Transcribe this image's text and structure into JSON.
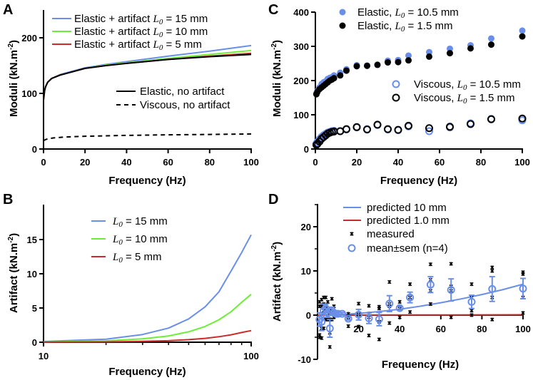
{
  "colors": {
    "blue": "#6a8fe8",
    "green": "#6cee38",
    "red": "#cc2b2b",
    "black": "#000000"
  },
  "chart_data": [
    {
      "panel": "A",
      "type": "line",
      "xlabel": "Frequency (Hz)",
      "ylabel": {
        "pre": "Moduli (kN.m",
        "sup": "-2",
        "post": ")"
      },
      "xlim": [
        0,
        100
      ],
      "ylim": [
        0,
        250
      ],
      "xscale": "linear",
      "xticks": [
        "0",
        "20",
        "40",
        "60",
        "80",
        "100"
      ],
      "yticks": [
        "0",
        "100",
        "200"
      ],
      "legend_position": "top-right",
      "series": [
        {
          "name": {
            "pre": "Elastic + artifact ",
            "sym": "L",
            "sub": "0",
            "post": " = 15 mm"
          },
          "color": "#6a8fe8",
          "style": "line",
          "x": [
            0,
            0.5,
            1,
            2,
            4,
            8,
            15,
            20,
            30,
            40,
            60,
            80,
            100
          ],
          "y": [
            88,
            105,
            112,
            120,
            127,
            134,
            141,
            146,
            152,
            157,
            167,
            176,
            186
          ]
        },
        {
          "name": {
            "pre": "Elastic + artifact ",
            "sym": "L",
            "sub": "0",
            "post": " = 10 mm"
          },
          "color": "#6cee38",
          "style": "line",
          "x": [
            0,
            0.5,
            1,
            2,
            4,
            8,
            15,
            20,
            30,
            40,
            60,
            80,
            100
          ],
          "y": [
            88,
            105,
            112,
            120,
            127,
            133,
            140,
            145,
            151,
            155,
            163,
            170,
            177
          ]
        },
        {
          "name": {
            "pre": "Elastic + artifact ",
            "sym": "L",
            "sub": "0",
            "post": " = 5 mm"
          },
          "color": "#cc2b2b",
          "style": "line",
          "x": [
            0,
            0.5,
            1,
            2,
            4,
            8,
            15,
            20,
            30,
            40,
            60,
            80,
            100
          ],
          "y": [
            88,
            105,
            112,
            120,
            127,
            133,
            140,
            145,
            150,
            154,
            161,
            167,
            172
          ]
        },
        {
          "name": {
            "pre": "Elastic, no artifact",
            "sym": "",
            "sub": "",
            "post": ""
          },
          "color": "#000000",
          "style": "line",
          "x": [
            0,
            0.5,
            1,
            2,
            4,
            8,
            15,
            20,
            30,
            40,
            60,
            80,
            100
          ],
          "y": [
            88,
            105,
            112,
            120,
            127,
            133,
            140,
            145,
            150,
            154,
            161,
            166,
            170
          ]
        },
        {
          "name": {
            "pre": "Viscous, no artifact",
            "sym": "",
            "sub": "",
            "post": ""
          },
          "color": "#000000",
          "style": "dashed",
          "x": [
            0,
            1,
            3,
            5,
            10,
            20,
            40,
            60,
            80,
            100
          ],
          "y": [
            15,
            17,
            19,
            20,
            21.5,
            23,
            24.5,
            25.5,
            26.2,
            27
          ]
        }
      ]
    },
    {
      "panel": "B",
      "type": "line",
      "xlabel": "Frequency (Hz)",
      "ylabel": {
        "pre": "Artifact (kN.m",
        "sup": "-2",
        "post": ")"
      },
      "xlim": [
        10,
        100
      ],
      "ylim": [
        0,
        20
      ],
      "xscale": "log",
      "xticks": [
        "10",
        "100"
      ],
      "yticks": [
        "0",
        "5",
        "10",
        "15"
      ],
      "legend_position": "top-center",
      "series": [
        {
          "name": {
            "pre": "",
            "sym": "L",
            "sub": "0",
            "post": " = 15 mm"
          },
          "color": "#6a8fe8",
          "style": "line",
          "x": [
            10,
            20,
            30,
            40,
            50,
            60,
            70,
            80,
            90,
            100
          ],
          "y": [
            0.1,
            0.45,
            1.12,
            2.06,
            3.41,
            5.17,
            7.36,
            10.4,
            13.1,
            15.7
          ]
        },
        {
          "name": {
            "pre": "",
            "sym": "L",
            "sub": "0",
            "post": " = 10 mm"
          },
          "color": "#6cee38",
          "style": "line",
          "x": [
            10,
            20,
            30,
            40,
            50,
            60,
            70,
            80,
            90,
            100
          ],
          "y": [
            0.04,
            0.2,
            0.5,
            0.92,
            1.52,
            2.3,
            3.28,
            4.45,
            5.83,
            7.0
          ]
        },
        {
          "name": {
            "pre": "",
            "sym": "L",
            "sub": "0",
            "post": " = 5 mm"
          },
          "color": "#cc2b2b",
          "style": "line",
          "x": [
            10,
            20,
            30,
            40,
            50,
            60,
            70,
            80,
            90,
            100
          ],
          "y": [
            0.01,
            0.05,
            0.12,
            0.22,
            0.37,
            0.56,
            0.8,
            1.08,
            1.42,
            1.7
          ]
        }
      ]
    },
    {
      "panel": "C",
      "type": "scatter",
      "xlabel": "Frequency (Hz)",
      "ylabel": {
        "pre": "Moduli (kN.m",
        "sup": "-2",
        "post": ")"
      },
      "xlim": [
        0,
        100
      ],
      "ylim": [
        0,
        400
      ],
      "xscale": "linear",
      "xticks": [
        "0",
        "20",
        "40",
        "60",
        "80",
        "100"
      ],
      "yticks": [
        "0",
        "100",
        "200",
        "300",
        "400"
      ],
      "legend_position": "top-left / middle-right",
      "series": [
        {
          "name": {
            "pre": "Elastic, ",
            "sym": "L",
            "sub": "0",
            "post": " = 10.5 mm"
          },
          "color": "#6a8fe8",
          "style": "filled",
          "x": [
            0.5,
            1,
            2,
            3,
            4,
            5,
            6,
            7,
            8,
            9,
            12,
            15,
            20,
            25,
            30,
            35,
            40,
            45,
            55,
            65,
            75,
            85,
            100
          ],
          "y": [
            163,
            170,
            180,
            190,
            195,
            198,
            205,
            208,
            210,
            215,
            223,
            233,
            245,
            244,
            246,
            258,
            260,
            273,
            283,
            293,
            303,
            323,
            346
          ]
        },
        {
          "name": {
            "pre": "Elastic, ",
            "sym": "L",
            "sub": "0",
            "post": " =  1.5 mm"
          },
          "color": "#000000",
          "style": "filled",
          "x": [
            0.5,
            1,
            2,
            3,
            4,
            5,
            6,
            7,
            8,
            9,
            12,
            15,
            20,
            25,
            30,
            35,
            40,
            45,
            55,
            65,
            75,
            85,
            100
          ],
          "y": [
            160,
            167,
            175,
            180,
            185,
            190,
            195,
            200,
            203,
            207,
            215,
            229,
            242,
            243,
            246,
            253,
            254,
            259,
            270,
            280,
            294,
            305,
            329
          ]
        },
        {
          "name": {
            "pre": "Viscous, ",
            "sym": "L",
            "sub": "0",
            "post": " = 10.5 mm"
          },
          "color": "#6a8fe8",
          "style": "open",
          "x": [
            0.5,
            1,
            2,
            3,
            4,
            5,
            6,
            7,
            8,
            9,
            12,
            15,
            20,
            25,
            30,
            35,
            40,
            45,
            55,
            65,
            75,
            85,
            100
          ],
          "y": [
            15,
            20,
            28,
            35,
            40,
            44,
            48,
            50,
            52,
            53,
            52,
            57,
            63,
            58,
            70,
            57,
            55,
            66,
            52,
            63,
            75,
            88,
            84
          ]
        },
        {
          "name": {
            "pre": "Viscous, ",
            "sym": "L",
            "sub": "0",
            "post": " =  1.5 mm"
          },
          "color": "#000000",
          "style": "open",
          "x": [
            0.5,
            1,
            2,
            3,
            4,
            5,
            6,
            7,
            8,
            9,
            12,
            15,
            20,
            25,
            30,
            35,
            40,
            45,
            55,
            65,
            75,
            85,
            100
          ],
          "y": [
            12,
            15,
            22,
            30,
            35,
            40,
            45,
            48,
            50,
            51,
            52,
            58,
            64,
            57,
            71,
            58,
            56,
            68,
            61,
            65,
            73,
            87,
            89
          ]
        }
      ]
    },
    {
      "panel": "D",
      "type": "scatter",
      "xlabel": "Frequency (Hz)",
      "ylabel": {
        "pre": "Artifact (kN.m",
        "sup": "-2",
        "post": ")"
      },
      "xlim": [
        0,
        100
      ],
      "ylim": [
        -10,
        25
      ],
      "xscale": "linear",
      "xticks": [
        "20",
        "40",
        "60",
        "80",
        "100"
      ],
      "yticks": [
        "-10",
        "0",
        "10",
        "20"
      ],
      "legend_position": "top-left",
      "series": [
        {
          "name": {
            "pre": "predicted 10 mm",
            "sym": "",
            "sub": "",
            "post": ""
          },
          "color": "#6a8fe8",
          "style": "line",
          "x": [
            0,
            10,
            20,
            30,
            40,
            50,
            60,
            70,
            80,
            90,
            100
          ],
          "y": [
            0,
            0.11,
            0.38,
            0.8,
            1.34,
            2.01,
            2.8,
            3.67,
            4.66,
            5.75,
            7.0
          ]
        },
        {
          "name": {
            "pre": "predicted 1.0 mm",
            "sym": "",
            "sub": "",
            "post": ""
          },
          "color": "#cc2b2b",
          "style": "line",
          "x": [
            0,
            50,
            100
          ],
          "y": [
            0,
            0.04,
            0.08
          ]
        },
        {
          "name": {
            "pre": "measured",
            "sym": "",
            "sub": "",
            "post": ""
          },
          "color": "#000000",
          "style": "star",
          "x": [
            1,
            1,
            1,
            1,
            2,
            2,
            2,
            2,
            3,
            3,
            3,
            3,
            4,
            4,
            4,
            4,
            5,
            5,
            5,
            5,
            6,
            6,
            6,
            6,
            7,
            7,
            7,
            7,
            8,
            8,
            8,
            8,
            10,
            10,
            10,
            10,
            15,
            15,
            15,
            15,
            20,
            20,
            20,
            20,
            25,
            25,
            25,
            25,
            30,
            30,
            30,
            30,
            35,
            35,
            35,
            35,
            40,
            40,
            40,
            40,
            45,
            45,
            45,
            45,
            55,
            55,
            55,
            55,
            65,
            65,
            65,
            65,
            75,
            75,
            75,
            75,
            85,
            85,
            85,
            85,
            100,
            100,
            100,
            100
          ],
          "y": [
            -5,
            -4.5,
            2,
            3,
            -5.2,
            3.5,
            2,
            -3,
            4,
            -3,
            2.5,
            1,
            4,
            -1,
            1.5,
            2,
            3,
            -1,
            1,
            -1,
            -7.2,
            -4,
            0.5,
            -1,
            3.7,
            1,
            -1,
            0.5,
            2,
            0,
            -0.5,
            0.5,
            0.5,
            0,
            0.3,
            0.2,
            0.3,
            -2.5,
            -0.8,
            -0.5,
            2.6,
            0.2,
            -2.6,
            0.1,
            2.1,
            -4.6,
            0.3,
            -0.5,
            1.9,
            -5.5,
            1.5,
            -1.5,
            7.5,
            -1.8,
            2,
            2.5,
            3,
            -0.5,
            1.5,
            2,
            7,
            0.7,
            4,
            4,
            11.5,
            2.5,
            8,
            5.5,
            11.6,
            -0.5,
            6.5,
            5.5,
            7,
            0,
            1,
            4,
            10.8,
            -1,
            10,
            4,
            9.7,
            0.5,
            4,
            9.3
          ]
        },
        {
          "name": {
            "pre": "mean±sem (n=4)",
            "sym": "",
            "sub": "",
            "post": ""
          },
          "color": "#6a8fe8",
          "style": "errorbar",
          "x": [
            1,
            2,
            3,
            4,
            5,
            6,
            7,
            8,
            9,
            10,
            12,
            15,
            20,
            25,
            30,
            35,
            40,
            45,
            55,
            65,
            75,
            85,
            100
          ],
          "y": [
            -1,
            -1.5,
            1,
            1.5,
            0.5,
            -3,
            1,
            0.5,
            0.3,
            0.3,
            0.3,
            -0.8,
            0.1,
            -0.7,
            -0.9,
            2.6,
            1.6,
            4,
            6.9,
            5.7,
            3,
            5.9,
            6
          ],
          "sem": [
            1.5,
            2,
            1.5,
            1,
            1,
            2,
            0.8,
            0.5,
            0.3,
            0.3,
            0.3,
            0.3,
            1.2,
            1.2,
            1.5,
            1.8,
            0.4,
            1.2,
            1.8,
            2.5,
            1.5,
            2.8,
            2.3
          ]
        }
      ]
    }
  ]
}
